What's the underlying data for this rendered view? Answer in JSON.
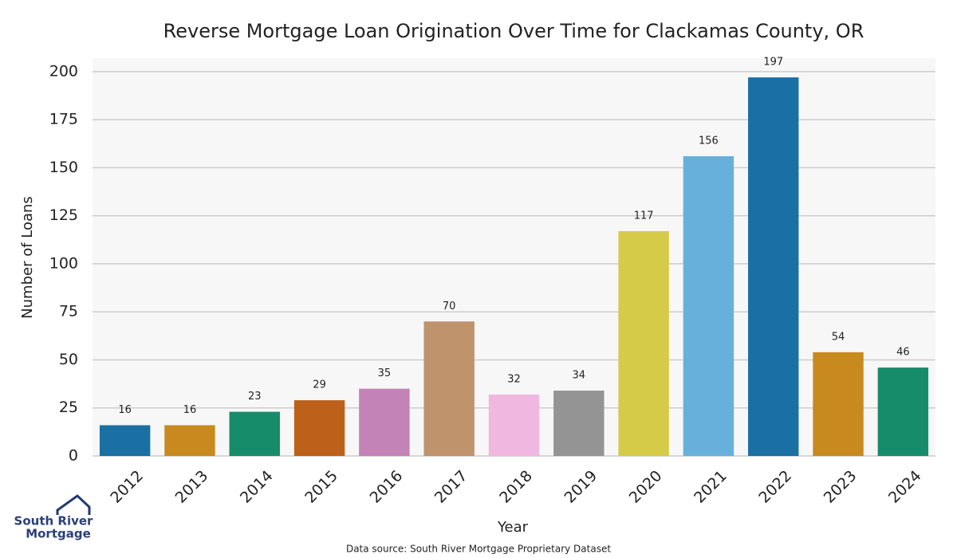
{
  "chart_data": {
    "type": "bar",
    "title": "Reverse Mortgage Loan Origination Over Time for Clackamas County, OR",
    "x_label": "Year",
    "y_label": "Number of Loans",
    "categories": [
      "2012",
      "2013",
      "2014",
      "2015",
      "2016",
      "2017",
      "2018",
      "2019",
      "2020",
      "2021",
      "2022",
      "2023",
      "2024"
    ],
    "values": [
      16,
      16,
      23,
      29,
      35,
      70,
      32,
      34,
      117,
      156,
      197,
      54,
      46
    ],
    "colors": [
      "#1a70a3",
      "#c88a1f",
      "#178c6a",
      "#bd611a",
      "#c383b6",
      "#bf936c",
      "#f0b8e0",
      "#949494",
      "#d6cb48",
      "#67b0dc",
      "#1a70a3",
      "#c88a1f",
      "#178c6a"
    ],
    "ylim": [
      0,
      207
    ],
    "yticks": [
      0,
      25,
      50,
      75,
      100,
      125,
      150,
      175,
      200
    ],
    "grid": true,
    "source": "Data source: South River Mortgage Proprietary Dataset"
  },
  "logo": [
    "South River",
    "Mortgage"
  ]
}
